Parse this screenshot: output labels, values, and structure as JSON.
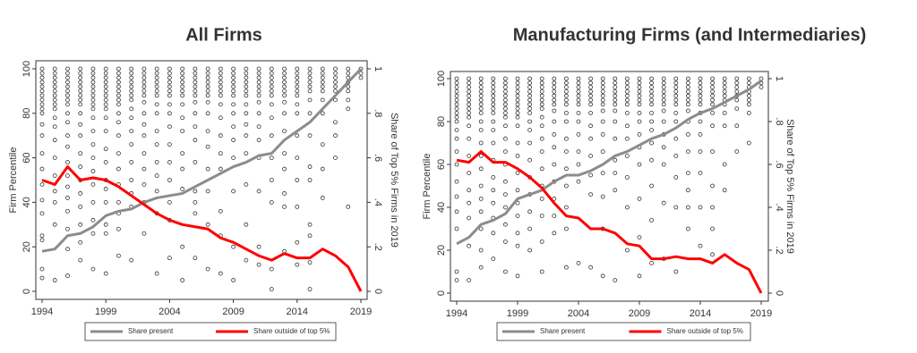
{
  "chart_data": [
    {
      "type": "scatter",
      "title": "All Firms",
      "ylabel": "Firm Percentile",
      "y2label": "Share of Top 5% Firms in 2019",
      "x": [
        1994,
        1995,
        1996,
        1997,
        1998,
        1999,
        2000,
        2001,
        2002,
        2003,
        2004,
        2005,
        2006,
        2007,
        2008,
        2009,
        2010,
        2011,
        2012,
        2013,
        2014,
        2015,
        2016,
        2017,
        2018,
        2019
      ],
      "xlim": [
        1994,
        2019
      ],
      "xticks": [
        1994,
        1999,
        2004,
        2009,
        2014,
        2019
      ],
      "ylim": [
        0,
        100
      ],
      "yticks": [
        0,
        20,
        40,
        60,
        80,
        100
      ],
      "y2lim": [
        0,
        1
      ],
      "y2ticks": [
        0,
        {
          "value": 0.2,
          "label": ".2"
        },
        {
          "value": 0.4,
          "label": ".4"
        },
        {
          "value": 0.6,
          "label": ".6"
        },
        {
          "value": 0.8,
          "label": ".8"
        },
        1
      ],
      "scatter_color": "#333333",
      "scatter_values": [
        [
          100,
          98,
          96,
          94,
          92,
          90,
          88,
          86,
          84,
          82,
          80,
          75,
          70,
          62,
          55,
          48,
          41,
          35,
          25,
          23,
          10,
          6
        ],
        [
          100,
          98,
          96,
          94,
          92,
          90,
          88,
          86,
          84,
          82,
          78,
          74,
          68,
          60,
          52,
          45,
          40,
          30,
          5
        ],
        [
          100,
          98,
          96,
          94,
          92,
          90,
          88,
          86,
          84,
          80,
          76,
          70,
          65,
          58,
          52,
          47,
          42,
          36,
          28,
          19,
          7
        ],
        [
          100,
          98,
          96,
          94,
          92,
          90,
          88,
          86,
          84,
          80,
          75,
          70,
          62,
          56,
          50,
          44,
          38,
          30,
          22,
          14
        ],
        [
          100,
          98,
          96,
          94,
          92,
          90,
          88,
          86,
          84,
          82,
          78,
          72,
          66,
          60,
          54,
          48,
          40,
          32,
          26,
          10
        ],
        [
          100,
          98,
          96,
          94,
          92,
          90,
          88,
          86,
          84,
          82,
          78,
          72,
          64,
          58,
          50,
          46,
          40,
          30,
          26,
          8
        ],
        [
          100,
          98,
          96,
          94,
          92,
          90,
          88,
          86,
          84,
          80,
          76,
          70,
          62,
          55,
          48,
          40,
          35,
          28,
          16
        ],
        [
          100,
          98,
          96,
          94,
          92,
          90,
          88,
          86,
          82,
          78,
          72,
          66,
          58,
          50,
          44,
          38,
          14
        ],
        [
          100,
          98,
          96,
          94,
          92,
          90,
          88,
          85,
          80,
          75,
          70,
          62,
          55,
          48,
          40,
          26
        ],
        [
          100,
          98,
          96,
          94,
          92,
          90,
          88,
          84,
          80,
          72,
          66,
          58,
          52,
          45,
          35,
          8
        ],
        [
          100,
          98,
          96,
          94,
          92,
          90,
          88,
          84,
          80,
          74,
          66,
          58,
          50,
          40,
          32,
          15
        ],
        [
          100,
          98,
          96,
          94,
          92,
          90,
          88,
          84,
          78,
          72,
          62,
          55,
          46,
          20,
          5
        ],
        [
          100,
          98,
          96,
          94,
          92,
          90,
          88,
          85,
          80,
          74,
          68,
          58,
          45,
          40,
          35,
          15
        ],
        [
          100,
          98,
          96,
          94,
          92,
          90,
          88,
          85,
          80,
          72,
          65,
          55,
          45,
          30,
          10
        ],
        [
          100,
          98,
          96,
          94,
          92,
          90,
          88,
          84,
          78,
          70,
          62,
          55,
          36,
          25,
          8
        ],
        [
          100,
          98,
          96,
          94,
          92,
          90,
          88,
          84,
          80,
          74,
          68,
          60,
          45,
          20,
          5
        ],
        [
          100,
          98,
          96,
          94,
          92,
          90,
          88,
          84,
          80,
          75,
          70,
          62,
          48,
          30,
          14
        ],
        [
          100,
          98,
          96,
          94,
          92,
          90,
          88,
          85,
          80,
          74,
          68,
          60,
          45,
          20,
          12
        ],
        [
          100,
          98,
          96,
          94,
          92,
          90,
          88,
          84,
          78,
          70,
          60,
          50,
          40,
          10,
          1
        ],
        [
          100,
          98,
          96,
          94,
          92,
          90,
          88,
          85,
          80,
          72,
          62,
          55,
          44,
          38,
          18
        ],
        [
          100,
          98,
          96,
          94,
          92,
          90,
          88,
          84,
          80,
          70,
          60,
          50,
          38,
          22,
          12
        ],
        [
          100,
          98,
          96,
          94,
          92,
          90,
          86,
          80,
          70,
          56,
          50,
          30,
          25,
          13,
          1
        ],
        [
          100,
          98,
          96,
          94,
          92,
          90,
          86,
          80,
          66,
          55,
          42
        ],
        [
          100,
          98,
          96,
          94,
          92,
          90,
          86,
          76,
          70,
          60
        ],
        [
          100,
          98,
          96,
          94,
          92,
          90,
          86,
          82,
          38
        ],
        [
          100,
          98,
          96
        ]
      ],
      "series": [
        {
          "name": "Share present",
          "color": "#8c8c8c",
          "axis": "y2",
          "values": [
            0.18,
            0.19,
            0.25,
            0.26,
            0.29,
            0.34,
            0.36,
            0.37,
            0.4,
            0.42,
            0.43,
            0.44,
            0.47,
            0.5,
            0.53,
            0.56,
            0.58,
            0.61,
            0.62,
            0.68,
            0.72,
            0.76,
            0.82,
            0.88,
            0.94,
            1.0
          ]
        },
        {
          "name": "Share outside of top 5%",
          "color": "#ff0000",
          "axis": "y2",
          "values": [
            0.5,
            0.48,
            0.56,
            0.5,
            0.51,
            0.5,
            0.47,
            0.43,
            0.39,
            0.35,
            0.32,
            0.3,
            0.29,
            0.28,
            0.24,
            0.22,
            0.19,
            0.16,
            0.14,
            0.17,
            0.15,
            0.15,
            0.19,
            0.16,
            0.11,
            0
          ]
        }
      ]
    },
    {
      "type": "scatter",
      "title": "Manufacturing Firms (and Intermediaries)",
      "ylabel": "Firm Percentile",
      "y2label": "Share of Top 5% Firms in 2019",
      "x": [
        1994,
        1995,
        1996,
        1997,
        1998,
        1999,
        2000,
        2001,
        2002,
        2003,
        2004,
        2005,
        2006,
        2007,
        2008,
        2009,
        2010,
        2011,
        2012,
        2013,
        2014,
        2015,
        2016,
        2017,
        2018,
        2019
      ],
      "xlim": [
        1994,
        2019
      ],
      "xticks": [
        1994,
        1999,
        2004,
        2009,
        2014,
        2019
      ],
      "ylim": [
        0,
        100
      ],
      "yticks": [
        0,
        20,
        40,
        60,
        80,
        100
      ],
      "y2lim": [
        0,
        1
      ],
      "y2ticks": [
        0,
        {
          "value": 0.2,
          "label": ".2"
        },
        {
          "value": 0.4,
          "label": ".4"
        },
        {
          "value": 0.6,
          "label": ".6"
        },
        {
          "value": 0.8,
          "label": ".8"
        },
        1
      ],
      "scatter_color": "#333333",
      "scatter_values": [
        [
          100,
          98,
          96,
          94,
          92,
          90,
          88,
          86,
          84,
          82,
          80,
          76,
          72,
          66,
          60,
          52,
          45,
          38,
          30,
          10,
          6
        ],
        [
          100,
          98,
          96,
          94,
          92,
          90,
          88,
          86,
          84,
          82,
          78,
          72,
          64,
          56,
          48,
          42,
          35,
          22,
          6
        ],
        [
          100,
          98,
          96,
          94,
          92,
          90,
          88,
          86,
          84,
          80,
          76,
          70,
          64,
          58,
          50,
          44,
          38,
          30,
          20,
          12
        ],
        [
          100,
          98,
          96,
          94,
          92,
          90,
          88,
          86,
          84,
          80,
          76,
          70,
          62,
          54,
          48,
          42,
          35,
          28,
          16
        ],
        [
          100,
          98,
          96,
          94,
          92,
          90,
          88,
          86,
          84,
          82,
          78,
          72,
          66,
          60,
          52,
          46,
          40,
          32,
          24,
          10
        ],
        [
          100,
          98,
          96,
          94,
          92,
          90,
          88,
          86,
          84,
          82,
          78,
          70,
          64,
          56,
          48,
          42,
          36,
          28,
          22,
          8
        ],
        [
          100,
          98,
          96,
          94,
          92,
          90,
          88,
          86,
          84,
          80,
          76,
          70,
          62,
          54,
          46,
          38,
          30,
          20
        ],
        [
          100,
          98,
          96,
          94,
          92,
          90,
          88,
          86,
          82,
          78,
          72,
          66,
          58,
          50,
          44,
          36,
          24,
          10
        ],
        [
          100,
          98,
          96,
          94,
          92,
          90,
          88,
          85,
          80,
          74,
          68,
          60,
          52,
          44,
          36,
          28
        ],
        [
          100,
          98,
          96,
          94,
          92,
          90,
          88,
          84,
          80,
          72,
          66,
          58,
          50,
          40,
          30,
          12
        ],
        [
          100,
          98,
          96,
          94,
          92,
          90,
          88,
          84,
          80,
          74,
          66,
          60,
          52,
          14
        ],
        [
          100,
          98,
          96,
          94,
          92,
          90,
          88,
          84,
          78,
          72,
          64,
          55,
          46,
          12
        ],
        [
          100,
          98,
          96,
          94,
          92,
          90,
          88,
          85,
          80,
          74,
          66,
          56,
          45,
          30,
          8
        ],
        [
          100,
          98,
          96,
          94,
          92,
          90,
          88,
          85,
          80,
          72,
          62,
          56,
          48,
          6
        ],
        [
          100,
          98,
          96,
          94,
          92,
          90,
          88,
          84,
          78,
          72,
          64,
          54,
          40,
          20
        ],
        [
          100,
          98,
          96,
          94,
          92,
          90,
          88,
          84,
          80,
          74,
          68,
          60,
          44,
          26,
          8
        ],
        [
          100,
          98,
          96,
          94,
          92,
          90,
          88,
          84,
          80,
          76,
          70,
          62,
          50,
          34,
          14
        ],
        [
          100,
          98,
          96,
          94,
          92,
          90,
          88,
          85,
          80,
          74,
          68,
          60,
          42,
          16
        ],
        [
          100,
          98,
          96,
          94,
          92,
          90,
          88,
          84,
          80,
          72,
          64,
          54,
          40,
          10
        ],
        [
          100,
          98,
          96,
          94,
          92,
          90,
          88,
          85,
          80,
          74,
          66,
          56,
          48,
          40,
          30
        ],
        [
          100,
          98,
          96,
          94,
          92,
          90,
          88,
          84,
          80,
          74,
          66,
          56,
          40,
          22
        ],
        [
          100,
          98,
          96,
          94,
          92,
          90,
          88,
          84,
          78,
          66,
          50,
          40,
          30,
          18
        ],
        [
          100,
          98,
          96,
          94,
          92,
          90,
          88,
          84,
          78,
          60,
          48
        ],
        [
          100,
          98,
          96,
          94,
          92,
          90,
          86,
          78,
          66
        ],
        [
          100,
          98,
          96,
          94,
          92,
          90,
          88,
          84,
          70
        ],
        [
          100,
          98,
          96
        ]
      ],
      "series": [
        {
          "name": "Share present",
          "color": "#8c8c8c",
          "axis": "y2",
          "values": [
            0.23,
            0.26,
            0.32,
            0.34,
            0.37,
            0.44,
            0.46,
            0.48,
            0.52,
            0.55,
            0.55,
            0.57,
            0.6,
            0.64,
            0.66,
            0.69,
            0.72,
            0.74,
            0.77,
            0.81,
            0.84,
            0.86,
            0.89,
            0.92,
            0.95,
            0.99
          ]
        },
        {
          "name": "Share outside of top 5%",
          "color": "#ff0000",
          "axis": "y2",
          "values": [
            0.62,
            0.61,
            0.66,
            0.61,
            0.61,
            0.58,
            0.54,
            0.49,
            0.42,
            0.36,
            0.35,
            0.3,
            0.3,
            0.28,
            0.23,
            0.22,
            0.16,
            0.16,
            0.17,
            0.16,
            0.16,
            0.14,
            0.18,
            0.14,
            0.11,
            0
          ]
        }
      ]
    }
  ]
}
